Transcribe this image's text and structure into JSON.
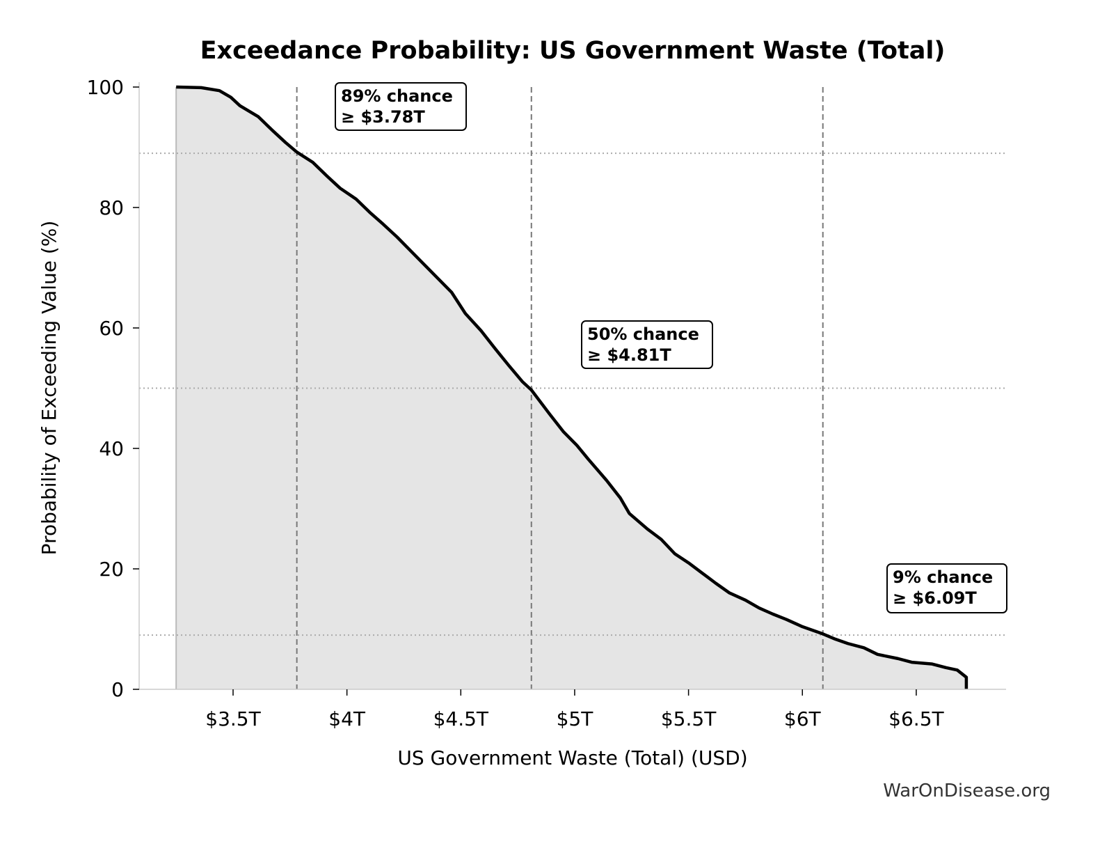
{
  "chart_data": {
    "type": "area",
    "title": "Exceedance Probability: US Government Waste (Total)",
    "xlabel": "US Government Waste (Total) (USD)",
    "ylabel": "Probability of Exceeding Value (%)",
    "xlim": [
      3.09,
      6.89
    ],
    "ylim": [
      0,
      100
    ],
    "x_unit": "trillion USD",
    "x_ticks": [
      3.5,
      4,
      4.5,
      5,
      5.5,
      6,
      6.5
    ],
    "x_tick_labels": [
      "$3.5T",
      "$4T",
      "$4.5T",
      "$5T",
      "$5.5T",
      "$6T",
      "$6.5T"
    ],
    "y_ticks": [
      0,
      20,
      40,
      60,
      80,
      100
    ],
    "y_tick_labels": [
      "0",
      "20",
      "40",
      "60",
      "80",
      "100"
    ],
    "grid": false,
    "series": [
      {
        "x": [
          3.25,
          3.36,
          3.44,
          3.49,
          3.53,
          3.61,
          3.67,
          3.73,
          3.78,
          3.85,
          3.91,
          3.97,
          4.04,
          4.1,
          4.16,
          4.22,
          4.28,
          4.34,
          4.4,
          4.46,
          4.52,
          4.59,
          4.65,
          4.71,
          4.77,
          4.81,
          4.89,
          4.95,
          5.01,
          5.06,
          5.14,
          5.2,
          5.24,
          5.32,
          5.38,
          5.44,
          5.5,
          5.56,
          5.62,
          5.68,
          5.75,
          5.81,
          5.87,
          5.93,
          6.0,
          6.09,
          6.14,
          6.2,
          6.27,
          6.33,
          6.42,
          6.48,
          6.57,
          6.63,
          6.68,
          6.72,
          6.72
        ],
        "y": [
          100,
          99.9,
          99.4,
          98.3,
          96.9,
          95.1,
          92.9,
          90.8,
          89.2,
          87.5,
          85.3,
          83.2,
          81.4,
          79.2,
          77.2,
          75.1,
          72.8,
          70.5,
          68.2,
          65.9,
          62.4,
          59.5,
          56.6,
          53.8,
          51.1,
          49.7,
          45.7,
          42.8,
          40.5,
          38.2,
          34.7,
          31.8,
          29.2,
          26.6,
          24.9,
          22.5,
          21.0,
          19.3,
          17.6,
          16.0,
          14.8,
          13.5,
          12.5,
          11.6,
          10.4,
          9.2,
          8.4,
          7.6,
          6.9,
          5.8,
          5.1,
          4.5,
          4.2,
          3.6,
          3.2,
          2.0,
          0
        ]
      }
    ],
    "reference_lines": [
      {
        "x": 3.78,
        "y": 89
      },
      {
        "x": 4.81,
        "y": 50
      },
      {
        "x": 6.09,
        "y": 9
      }
    ],
    "annotations": [
      {
        "line1": "89% chance",
        "line2": "≥ $3.78T"
      },
      {
        "line1": "50% chance",
        "line2": "≥ $4.81T"
      },
      {
        "line1": "9% chance",
        "line2": "≥ $6.09T"
      }
    ],
    "colors": {
      "line": "#000000",
      "fill": "#e5e5e5",
      "ref_vertical": "#777777",
      "ref_horizontal": "#aaaaaa"
    }
  },
  "watermark": "WarOnDisease.org"
}
